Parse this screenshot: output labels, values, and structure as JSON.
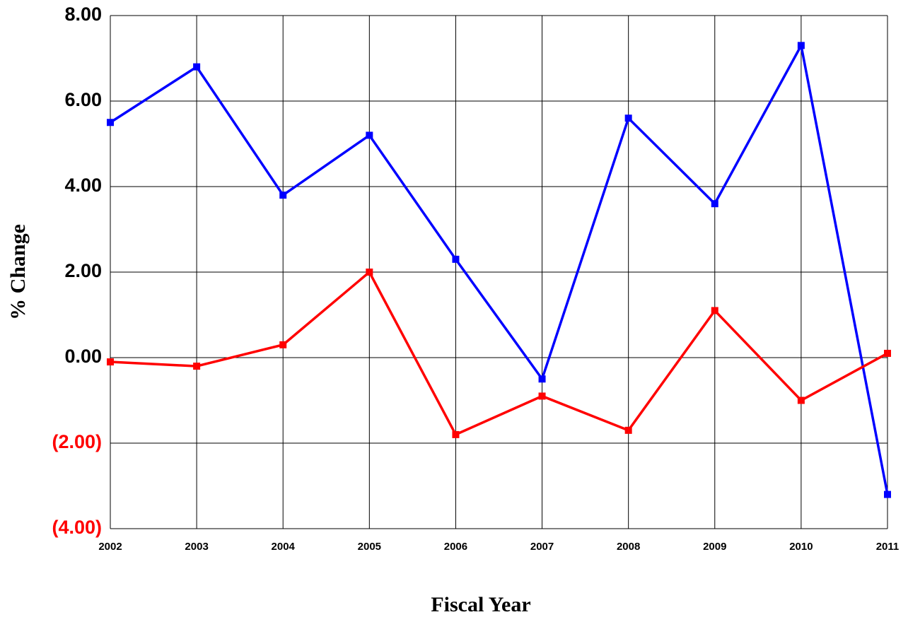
{
  "chart_data": {
    "type": "line",
    "x_label": "Fiscal Year",
    "y_label": "% Change",
    "x": [
      2002,
      2003,
      2004,
      2005,
      2006,
      2007,
      2008,
      2009,
      2010,
      2011
    ],
    "series": [
      {
        "color": "#0000ff",
        "values": [
          5.5,
          6.8,
          3.8,
          5.2,
          2.3,
          -0.5,
          5.6,
          3.6,
          7.3,
          -3.2
        ]
      },
      {
        "color": "#ff0000",
        "values": [
          -0.1,
          -0.2,
          0.3,
          2.0,
          -1.8,
          -0.9,
          -1.7,
          1.1,
          -1.0,
          0.1
        ]
      }
    ],
    "xlim": [
      2002,
      2011
    ],
    "xticks": [
      2002,
      2003,
      2004,
      2005,
      2006,
      2007,
      2008,
      2009,
      2010,
      2011
    ],
    "ylim": [
      -4,
      8
    ],
    "yticks": [
      {
        "value": -4,
        "label": "(4.00)"
      },
      {
        "value": -2,
        "label": "(2.00)"
      },
      {
        "value": 0,
        "label": "0.00"
      },
      {
        "value": 2,
        "label": "2.00"
      },
      {
        "value": 4,
        "label": "4.00"
      },
      {
        "value": 6,
        "label": "6.00"
      },
      {
        "value": 8,
        "label": "8.00"
      }
    ],
    "negative_tick_color": "#ff0000",
    "grid": true
  }
}
